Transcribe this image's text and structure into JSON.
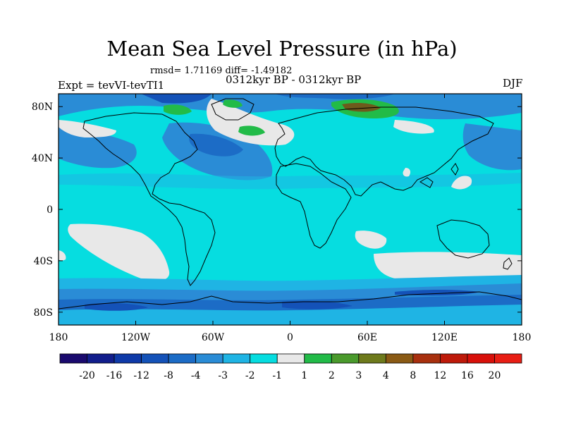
{
  "title": "Mean Sea Level Pressure (in hPa)",
  "stats": "rmsd= 1.71169 diff= -1.49182",
  "subtitle": "0312kyr BP - 0312kyr BP",
  "experiment": "Expt = tevVI-tevTI1",
  "season": "DJF",
  "map": {
    "lon_range": [
      -180,
      180
    ],
    "lat_range": [
      -90,
      90
    ],
    "x_ticks": [
      {
        "lon": -180,
        "label": "180"
      },
      {
        "lon": -120,
        "label": "120W"
      },
      {
        "lon": -60,
        "label": "60W"
      },
      {
        "lon": 0,
        "label": "0"
      },
      {
        "lon": 60,
        "label": "60E"
      },
      {
        "lon": 120,
        "label": "120E"
      },
      {
        "lon": 180,
        "label": "180"
      }
    ],
    "y_ticks": [
      {
        "lat": 80,
        "label": "80N"
      },
      {
        "lat": 40,
        "label": "40N"
      },
      {
        "lat": 0,
        "label": "0"
      },
      {
        "lat": -40,
        "label": "40S"
      },
      {
        "lat": -80,
        "label": "80S"
      }
    ]
  },
  "colorbar": {
    "labels": [
      "-20",
      "-16",
      "-12",
      "-8",
      "-4",
      "-3",
      "-2",
      "-1",
      "1",
      "2",
      "3",
      "4",
      "8",
      "12",
      "16",
      "20"
    ],
    "colors": [
      "#1a0a6e",
      "#121e8c",
      "#0f3aa8",
      "#1452b8",
      "#1c6cc6",
      "#2a8cd6",
      "#1fb4e4",
      "#06dde0",
      "#e8e8e8",
      "#22bb48",
      "#4a9a2c",
      "#6e7a1c",
      "#8a5a14",
      "#a8300e",
      "#be1a0a",
      "#d8100a",
      "#e81e14"
    ]
  },
  "colors": {
    "background_field": "#06dde0",
    "light_blue": "#2a8cd6",
    "mid_blue": "#1c6cc6",
    "dark_blue": "#1452b8",
    "neutral": "#e8e8e8",
    "green": "#22bb48",
    "brown": "#6e5a1c"
  }
}
